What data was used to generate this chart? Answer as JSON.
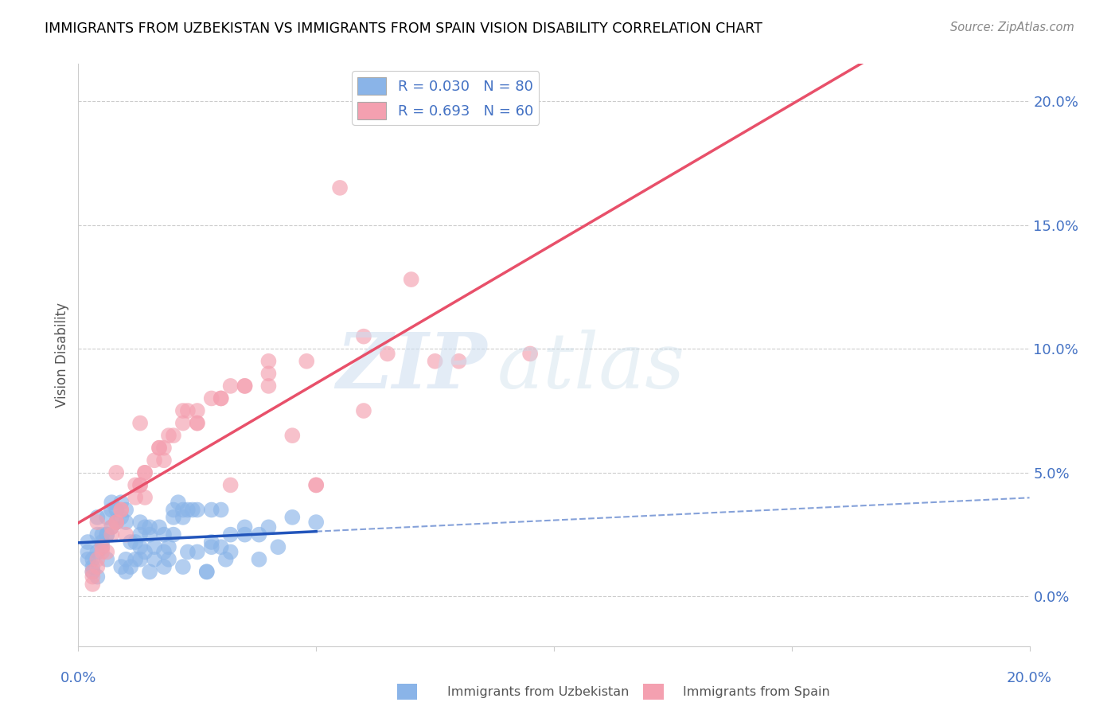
{
  "title": "IMMIGRANTS FROM UZBEKISTAN VS IMMIGRANTS FROM SPAIN VISION DISABILITY CORRELATION CHART",
  "source": "Source: ZipAtlas.com",
  "ylabel": "Vision Disability",
  "color_uzbekistan": "#8ab4e8",
  "color_spain": "#f4a0b0",
  "color_line_uzbekistan": "#2255bb",
  "color_line_spain": "#e8506a",
  "color_text_blue": "#4472c4",
  "legend_uzbekistan": "R = 0.030   N = 80",
  "legend_spain": "R = 0.693   N = 60",
  "xlim": [
    0.0,
    20.0
  ],
  "ylim": [
    -2.0,
    21.5
  ],
  "uzbekistan_x": [
    0.4,
    0.8,
    1.0,
    1.3,
    0.2,
    0.6,
    1.5,
    1.8,
    2.2,
    2.8,
    0.3,
    0.5,
    0.9,
    1.2,
    1.6,
    2.0,
    2.5,
    3.2,
    0.4,
    0.7,
    1.1,
    1.4,
    1.9,
    2.3,
    3.0,
    0.2,
    0.6,
    1.0,
    1.3,
    1.8,
    2.2,
    2.7,
    3.5,
    0.3,
    0.7,
    1.1,
    1.5,
    2.0,
    2.5,
    3.2,
    0.5,
    0.9,
    1.3,
    1.7,
    2.2,
    2.8,
    3.8,
    0.4,
    0.8,
    1.2,
    1.6,
    2.1,
    2.7,
    3.5,
    4.5,
    0.3,
    0.6,
    1.0,
    1.4,
    1.9,
    2.4,
    3.1,
    4.0,
    0.5,
    0.9,
    1.3,
    1.8,
    2.3,
    3.0,
    4.2,
    0.2,
    0.4,
    0.7,
    1.0,
    1.5,
    2.0,
    2.8,
    3.8,
    5.0,
    0.6
  ],
  "uzbekistan_y": [
    2.5,
    3.5,
    1.5,
    2.0,
    1.8,
    3.2,
    2.8,
    1.2,
    3.5,
    2.2,
    1.0,
    2.5,
    3.8,
    1.5,
    2.0,
    3.2,
    1.8,
    2.5,
    0.8,
    3.5,
    1.2,
    2.8,
    1.5,
    3.5,
    2.0,
    2.2,
    1.5,
    3.0,
    2.5,
    1.8,
    3.2,
    1.0,
    2.8,
    1.5,
    3.8,
    2.2,
    1.0,
    2.5,
    3.5,
    1.8,
    2.0,
    3.2,
    1.5,
    2.8,
    1.2,
    3.5,
    2.5,
    1.8,
    3.0,
    2.2,
    1.5,
    3.8,
    1.0,
    2.5,
    3.2,
    1.2,
    2.5,
    3.5,
    1.8,
    2.0,
    3.5,
    1.5,
    2.8,
    2.2,
    1.2,
    3.0,
    2.5,
    1.8,
    3.5,
    2.0,
    1.5,
    3.2,
    2.8,
    1.0,
    2.5,
    3.5,
    2.0,
    1.5,
    3.0,
    2.5
  ],
  "spain_x": [
    0.3,
    0.6,
    1.0,
    1.4,
    1.8,
    2.5,
    3.2,
    4.0,
    5.0,
    6.0,
    0.4,
    0.8,
    1.3,
    1.7,
    2.2,
    3.0,
    4.5,
    7.0,
    9.5,
    0.5,
    0.9,
    1.4,
    1.9,
    2.5,
    3.5,
    5.5,
    8.0,
    0.3,
    0.7,
    1.2,
    1.6,
    2.2,
    3.0,
    4.0,
    6.0,
    0.4,
    0.8,
    1.3,
    1.8,
    2.5,
    3.5,
    5.0,
    7.5,
    0.5,
    0.9,
    1.4,
    2.0,
    2.8,
    4.0,
    6.5,
    0.3,
    0.7,
    1.2,
    1.7,
    2.3,
    3.2,
    4.8,
    0.4,
    0.8,
    1.3
  ],
  "spain_y": [
    0.5,
    1.8,
    2.5,
    4.0,
    5.5,
    7.0,
    4.5,
    8.5,
    4.5,
    7.5,
    1.2,
    3.0,
    4.5,
    6.0,
    7.5,
    8.0,
    6.5,
    12.8,
    9.8,
    1.8,
    3.5,
    5.0,
    6.5,
    7.0,
    8.5,
    16.5,
    9.5,
    0.8,
    2.5,
    4.0,
    5.5,
    7.0,
    8.0,
    9.5,
    10.5,
    1.5,
    3.0,
    4.5,
    6.0,
    7.5,
    8.5,
    4.5,
    9.5,
    2.0,
    3.5,
    5.0,
    6.5,
    8.0,
    9.0,
    9.8,
    1.0,
    2.8,
    4.5,
    6.0,
    7.5,
    8.5,
    9.5,
    3.0,
    5.0,
    7.0
  ]
}
